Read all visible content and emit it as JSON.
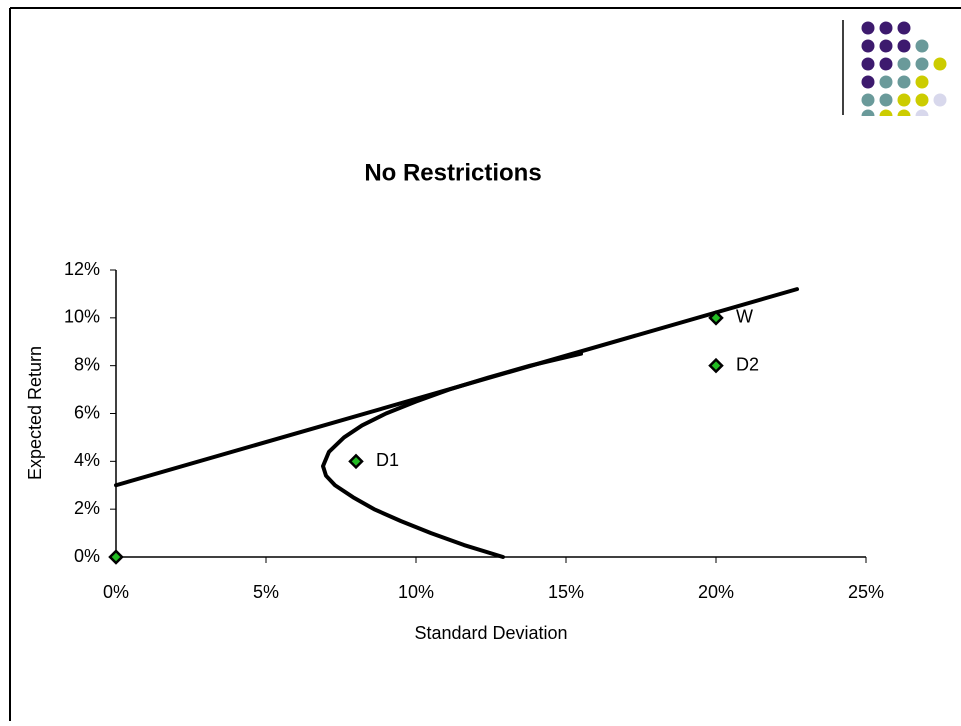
{
  "chart_data": {
    "type": "scatter",
    "title": "No Restrictions",
    "xlabel": "Standard Deviation",
    "ylabel": "Expected Return",
    "xlim": [
      0,
      25
    ],
    "xticks": [
      {
        "value": 0,
        "label": "0%"
      },
      {
        "value": 5,
        "label": "5%"
      },
      {
        "value": 10,
        "label": "10%"
      },
      {
        "value": 15,
        "label": "15%"
      },
      {
        "value": 20,
        "label": "20%"
      },
      {
        "value": 25,
        "label": "25%"
      }
    ],
    "ylim": [
      0,
      12
    ],
    "yticks": [
      {
        "value": 0,
        "label": "0%"
      },
      {
        "value": 2,
        "label": "2%"
      },
      {
        "value": 4,
        "label": "4%"
      },
      {
        "value": 6,
        "label": "6%"
      },
      {
        "value": 8,
        "label": "8%"
      },
      {
        "value": 10,
        "label": "10%"
      },
      {
        "value": 12,
        "label": "12%"
      }
    ],
    "series": [
      {
        "type": "line",
        "color": "#000000",
        "x": [
          12.9,
          11.6,
          10.5,
          9.5,
          8.6,
          7.9,
          7.3,
          7.0,
          6.9,
          7.1,
          7.6,
          8.2,
          9.0,
          10.0,
          11.1,
          12.4,
          13.8,
          15.5
        ],
        "values": [
          0,
          0.5,
          1,
          1.5,
          2,
          2.5,
          3,
          3.4,
          3.8,
          4.4,
          5,
          5.5,
          6,
          6.5,
          7,
          7.5,
          8,
          8.5
        ]
      },
      {
        "type": "line",
        "color": "#000000",
        "x": [
          0,
          22.7
        ],
        "values": [
          3,
          11.2
        ]
      },
      {
        "type": "scatter",
        "color": "#22bb22",
        "x": [
          0,
          8,
          20,
          20
        ],
        "values": [
          0,
          4,
          8,
          10
        ],
        "labels": [
          null,
          "D1",
          "D2",
          "W"
        ]
      }
    ]
  }
}
